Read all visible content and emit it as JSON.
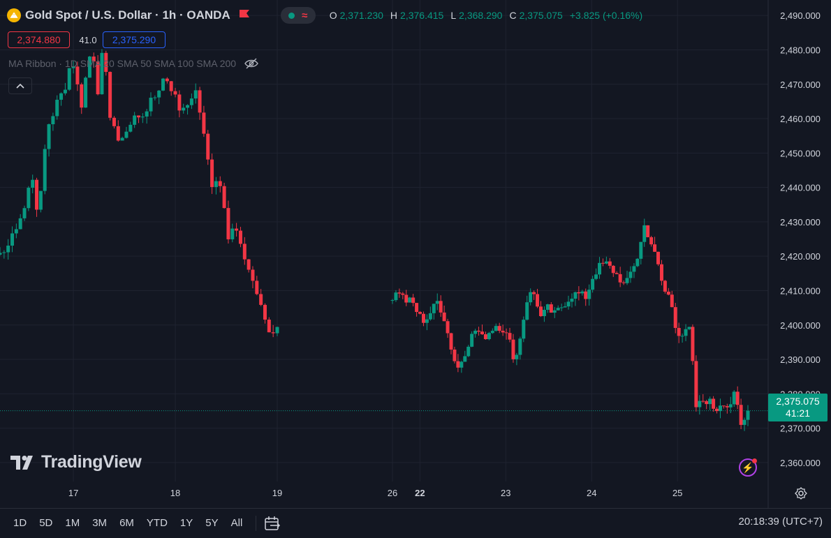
{
  "header": {
    "symbol": "Gold Spot / U.S. Dollar · 1h · OANDA",
    "ohlc": {
      "o_label": "O",
      "o": "2,371.230",
      "h_label": "H",
      "h": "2,376.415",
      "l_label": "L",
      "l": "2,368.290",
      "c_label": "C",
      "c": "2,375.075",
      "change": "+3.825 (+0.16%)"
    },
    "icons": [
      "gold-coin-icon",
      "flag-icon",
      "live-dot-icon",
      "wave-icon"
    ]
  },
  "quote": {
    "bid": "2,374.880",
    "spread": "41.0",
    "ask": "2,375.290"
  },
  "indicator": {
    "label": "MA Ribbon · 1D SMA 20 SMA 50 SMA 100 SMA 200",
    "icon": "eye-off-icon"
  },
  "watermark": "TradingView",
  "price_badge": {
    "price": "2,375.075",
    "countdown": "41:21"
  },
  "bottom_bar": {
    "ranges": [
      "1D",
      "5D",
      "1M",
      "3M",
      "6M",
      "YTD",
      "1Y",
      "5Y",
      "All"
    ],
    "clock": "20:18:39 (UTC+7)"
  },
  "colors": {
    "background": "#131722",
    "up": "#089981",
    "down": "#f23645",
    "grid": "#1f2330",
    "text": "#d1d4dc"
  },
  "chart_data": {
    "type": "candlestick",
    "title": "Gold Spot / U.S. Dollar · 1h · OANDA",
    "x_ticks": [
      {
        "label": "17",
        "day": 17,
        "bold": false
      },
      {
        "label": "18",
        "day": 18,
        "bold": false
      },
      {
        "label": "19",
        "day": 19,
        "bold": false
      },
      {
        "label": "22",
        "day": 22,
        "bold": true
      },
      {
        "label": "23",
        "day": 23,
        "bold": false
      },
      {
        "label": "24",
        "day": 24,
        "bold": false
      },
      {
        "label": "25",
        "day": 25,
        "bold": false
      },
      {
        "label": "26",
        "day": 26,
        "bold": false
      }
    ],
    "y_ticks": [
      "2,360.000",
      "2,370.000",
      "2,380.000",
      "2,390.000",
      "2,400.000",
      "2,410.000",
      "2,420.000",
      "2,430.000",
      "2,440.000",
      "2,450.000",
      "2,460.000",
      "2,470.000",
      "2,480.000",
      "2,490.000"
    ],
    "ylim": [
      2354.5,
      2494.5
    ],
    "last_price": 2375.075,
    "grid": true,
    "keyframes": [
      [
        2421,
        2421,
        2427,
        2428,
        2432,
        2438,
        2442,
        2431,
        2448,
        2458,
        2463,
        2468,
        2468,
        2478,
        2472,
        2464,
        2476,
        2478,
        2468,
        2483,
        2462,
        2458,
        2452,
        2456,
        2459,
        2460,
        2461,
        2462,
        2468,
        2466,
        2472,
        2471,
        2467,
        2463,
        2462,
        2466,
        2468,
        2460,
        2450,
        2441,
        2443,
        2438,
        2426,
        2429,
        2425,
        2418,
        2416,
        2410,
        2406,
        2399,
        2397,
        2400
      ],
      [
        2408,
        2410,
        2407,
        2407,
        2403,
        2401,
        2404,
        2407,
        2402,
        2394,
        2387,
        2391,
        2396,
        2399,
        2396,
        2398,
        2400,
        2399,
        2396,
        2389,
        2399,
        2409,
        2409,
        2402,
        2405,
        2403,
        2405,
        2407,
        2409,
        2409,
        2408,
        2414,
        2417,
        2418,
        2416,
        2414,
        2411,
        2416,
        2420,
        2429,
        2424,
        2418,
        2410,
        2408,
        2398,
        2397,
        2399,
        2376,
        2378,
        2378,
        2375,
        2378,
        2376,
        2380,
        2370,
        2375
      ]
    ],
    "segments": [
      {
        "from_day": 16.28,
        "to_day": 19.0
      },
      {
        "from_day": 21.68,
        "to_day": 25.82
      }
    ]
  }
}
